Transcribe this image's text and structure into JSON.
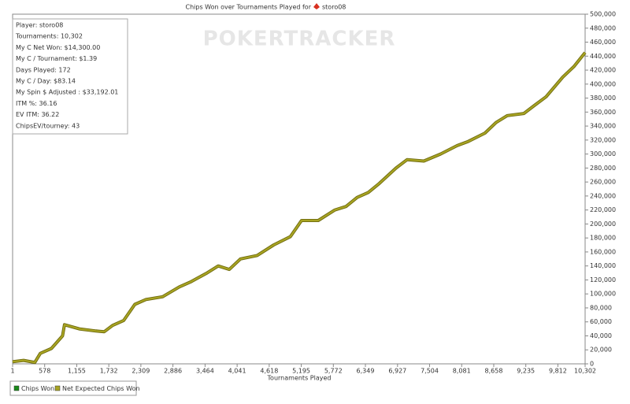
{
  "chart_data": {
    "type": "line",
    "title": "Chips Won over Tournaments Played for",
    "player": "storo08",
    "watermark": "POKERTRACKER",
    "x_label": "Tournaments Played",
    "stats": [
      "Player: storo08",
      "Tournaments: 10,302",
      "My C Net Won: $14,300.00",
      "My C / Tournament: $1.39",
      "Days Played: 172",
      "My C / Day: $83.14",
      "My Spin $ Adjusted : $33,192.01",
      "ITM %: 36.16",
      "EV ITM: 36.22",
      "ChipsEV/tourney: 43"
    ],
    "legend": [
      {
        "name": "Chips Won",
        "color": "#1a8a1a"
      },
      {
        "name": "Net Expected Chips Won",
        "color": "#a8a422"
      }
    ],
    "x": [
      1,
      200,
      400,
      500,
      700,
      900,
      935,
      1200,
      1500,
      1650,
      1800,
      2000,
      2200,
      2400,
      2700,
      3000,
      3200,
      3500,
      3700,
      3900,
      4100,
      4400,
      4700,
      5000,
      5200,
      5500,
      5800,
      6000,
      6200,
      6400,
      6600,
      6900,
      7100,
      7400,
      7700,
      8000,
      8200,
      8500,
      8700,
      8900,
      9200,
      9400,
      9600,
      9900,
      10100,
      10302
    ],
    "series": [
      {
        "name": "Net Expected Chips Won",
        "color": "#a8a422",
        "values": [
          3000,
          5000,
          2000,
          15000,
          22000,
          40000,
          56000,
          50000,
          47000,
          46000,
          55000,
          62000,
          85000,
          92000,
          96000,
          110000,
          117000,
          130000,
          140000,
          135000,
          150000,
          155000,
          170000,
          182000,
          205000,
          205000,
          220000,
          225000,
          238000,
          245000,
          258000,
          280000,
          292000,
          290000,
          300000,
          312000,
          318000,
          330000,
          345000,
          355000,
          358000,
          370000,
          382000,
          410000,
          425000,
          445000
        ]
      }
    ],
    "xlim": [
      1,
      10302
    ],
    "xticks": [
      1,
      {
        "value": 578,
        "label": "578"
      },
      {
        "value": 1155,
        "label": "1,155"
      },
      {
        "value": 1732,
        "label": "1,732"
      },
      {
        "value": 2309,
        "label": "2,309"
      },
      {
        "value": 2886,
        "label": "2,886"
      },
      {
        "value": 3464,
        "label": "3,464"
      },
      {
        "value": 4041,
        "label": "4,041"
      },
      {
        "value": 4618,
        "label": "4,618"
      },
      {
        "value": 5195,
        "label": "5,195"
      },
      {
        "value": 5772,
        "label": "5,772"
      },
      {
        "value": 6349,
        "label": "6,349"
      },
      {
        "value": 6927,
        "label": "6,927"
      },
      {
        "value": 7504,
        "label": "7,504"
      },
      {
        "value": 8081,
        "label": "8,081"
      },
      {
        "value": 8658,
        "label": "8,658"
      },
      {
        "value": 9235,
        "label": "9,235"
      },
      {
        "value": 9812,
        "label": "9,812"
      },
      {
        "value": 10302,
        "label": "10,302"
      }
    ],
    "ylim": [
      0,
      500000
    ],
    "yticks": [
      0,
      {
        "value": 20000,
        "label": "20,000"
      },
      {
        "value": 40000,
        "label": "40,000"
      },
      {
        "value": 60000,
        "label": "60,000"
      },
      {
        "value": 80000,
        "label": "80,000"
      },
      {
        "value": 100000,
        "label": "100,000"
      },
      {
        "value": 120000,
        "label": "120,000"
      },
      {
        "value": 140000,
        "label": "140,000"
      },
      {
        "value": 160000,
        "label": "160,000"
      },
      {
        "value": 180000,
        "label": "180,000"
      },
      {
        "value": 200000,
        "label": "200,000"
      },
      {
        "value": 220000,
        "label": "220,000"
      },
      {
        "value": 240000,
        "label": "240,000"
      },
      {
        "value": 260000,
        "label": "260,000"
      },
      {
        "value": 280000,
        "label": "280,000"
      },
      {
        "value": 300000,
        "label": "300,000"
      },
      {
        "value": 320000,
        "label": "320,000"
      },
      {
        "value": 340000,
        "label": "340,000"
      },
      {
        "value": 360000,
        "label": "360,000"
      },
      {
        "value": 380000,
        "label": "380,000"
      },
      {
        "value": 400000,
        "label": "400,000"
      },
      {
        "value": 420000,
        "label": "420,000"
      },
      {
        "value": 440000,
        "label": "440,000"
      },
      {
        "value": 460000,
        "label": "460,000"
      },
      {
        "value": 480000,
        "label": "480,000"
      },
      {
        "value": 500000,
        "label": "500,000"
      }
    ]
  }
}
